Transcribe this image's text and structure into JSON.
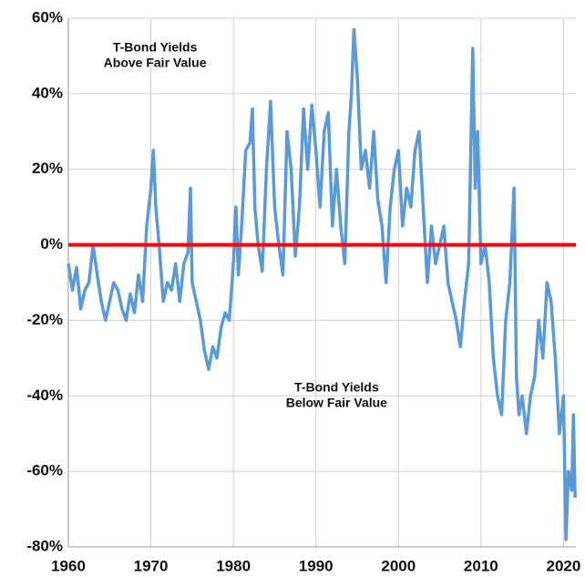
{
  "chart_data": {
    "type": "line",
    "annotations": [
      {
        "lines": [
          "T-Bond Yields",
          "Above Fair Value"
        ],
        "x": 1970.5,
        "y": 50
      },
      {
        "lines": [
          "T-Bond Yields",
          "Below Fair Value"
        ],
        "x": 1992.5,
        "y": -40
      }
    ],
    "reference_line": {
      "value": 0,
      "color": "#ff0000"
    },
    "grid": true,
    "xlim": [
      1960,
      2021.5
    ],
    "xticks": [
      1960,
      1970,
      1980,
      1990,
      2000,
      2010,
      2020
    ],
    "ylim": [
      -80,
      60
    ],
    "yticks": [
      {
        "value": -80,
        "label": "-80%"
      },
      {
        "value": -60,
        "label": "-60%"
      },
      {
        "value": -40,
        "label": "-40%"
      },
      {
        "value": -20,
        "label": "-20%"
      },
      {
        "value": 0,
        "label": "0%"
      },
      {
        "value": 20,
        "label": "20%"
      },
      {
        "value": 40,
        "label": "40%"
      },
      {
        "value": 60,
        "label": "60%"
      }
    ],
    "x": [
      1960,
      1960.5,
      1961,
      1961.5,
      1962,
      1962.5,
      1963,
      1963.5,
      1964,
      1964.5,
      1965,
      1965.5,
      1966,
      1966.5,
      1967,
      1967.5,
      1968,
      1968.5,
      1969,
      1969.5,
      1970,
      1970.3,
      1970.6,
      1971,
      1971.5,
      1972,
      1972.5,
      1973,
      1973.5,
      1974,
      1974.5,
      1974.8,
      1975,
      1975.5,
      1976,
      1976.5,
      1977,
      1977.5,
      1978,
      1978.5,
      1979,
      1979.5,
      1980,
      1980.3,
      1980.6,
      1981,
      1981.5,
      1982,
      1982.3,
      1982.6,
      1983,
      1983.5,
      1984,
      1984.5,
      1985,
      1985.5,
      1986,
      1986.5,
      1987,
      1987.5,
      1988,
      1988.5,
      1989,
      1989.5,
      1990,
      1990.5,
      1991,
      1991.5,
      1992,
      1992.5,
      1993,
      1993.5,
      1994,
      1994.3,
      1994.6,
      1995,
      1995.5,
      1996,
      1996.5,
      1997,
      1997.5,
      1998,
      1998.5,
      1999,
      1999.5,
      2000,
      2000.5,
      2001,
      2001.5,
      2002,
      2002.5,
      2003,
      2003.5,
      2004,
      2004.5,
      2005,
      2005.5,
      2006,
      2006.5,
      2007,
      2007.5,
      2008,
      2008.5,
      2009,
      2009.3,
      2009.6,
      2010,
      2010.5,
      2011,
      2011.5,
      2012,
      2012.5,
      2013,
      2013.5,
      2014,
      2014.3,
      2014.6,
      2015,
      2015.5,
      2016,
      2016.5,
      2017,
      2017.5,
      2018,
      2018.5,
      2019,
      2019.5,
      2020,
      2020.3,
      2020.6,
      2021,
      2021.2,
      2021.4
    ],
    "series": [
      {
        "color": "#5a9ad6",
        "values": [
          -5,
          -12,
          -6,
          -17,
          -12,
          -10,
          0,
          -8,
          -15,
          -20,
          -15,
          -10,
          -12,
          -17,
          -20,
          -13,
          -18,
          -8,
          -15,
          5,
          15,
          25,
          10,
          0,
          -15,
          -10,
          -12,
          -5,
          -15,
          -5,
          -2,
          15,
          -10,
          -15,
          -20,
          -28,
          -33,
          -27,
          -30,
          -22,
          -18,
          -20,
          -5,
          10,
          -8,
          5,
          25,
          27,
          36,
          10,
          0,
          -7,
          20,
          38,
          10,
          0,
          -8,
          30,
          20,
          -3,
          10,
          36,
          20,
          37,
          25,
          10,
          30,
          35,
          5,
          20,
          5,
          -5,
          30,
          40,
          57,
          45,
          20,
          25,
          15,
          30,
          12,
          5,
          -10,
          10,
          20,
          25,
          5,
          15,
          10,
          25,
          30,
          10,
          -10,
          5,
          -5,
          0,
          5,
          -10,
          -15,
          -20,
          -27,
          -15,
          -5,
          52,
          15,
          30,
          -5,
          0,
          -10,
          -30,
          -40,
          -45,
          -20,
          -10,
          15,
          -35,
          -45,
          -40,
          -50,
          -40,
          -35,
          -20,
          -30,
          -10,
          -15,
          -30,
          -50,
          -40,
          -78,
          -60,
          -65,
          -45,
          -67
        ]
      }
    ]
  }
}
